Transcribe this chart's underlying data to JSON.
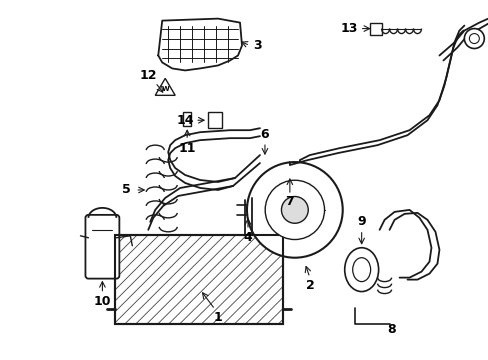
{
  "background_color": "#ffffff",
  "line_color": "#1a1a1a",
  "label_color": "#000000",
  "fig_w": 4.89,
  "fig_h": 3.6,
  "dpi": 100
}
